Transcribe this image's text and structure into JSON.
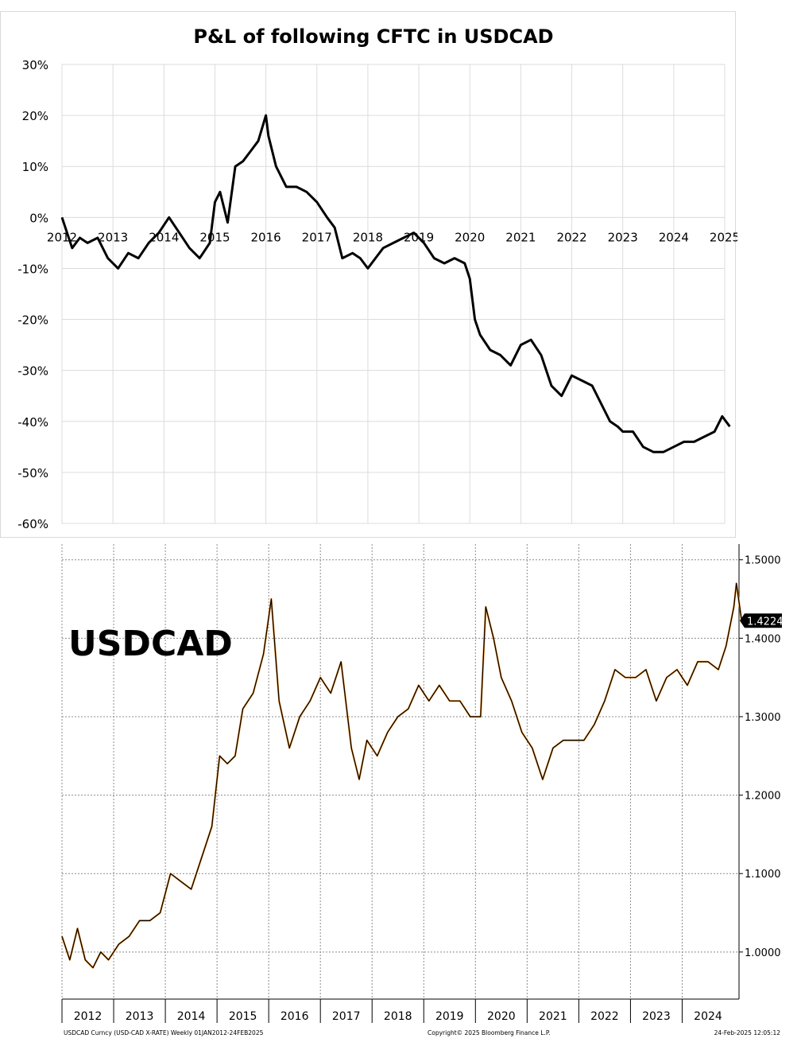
{
  "chart_data": [
    {
      "type": "line",
      "title": "P&L of following CFTC in USDCAD",
      "xlabel": "",
      "ylabel": "",
      "ylim": [
        -60,
        30
      ],
      "xlim": [
        2012,
        2025
      ],
      "y_ticks": [
        "30%",
        "20%",
        "10%",
        "0%",
        "-10%",
        "-20%",
        "-30%",
        "-40%",
        "-50%",
        "-60%"
      ],
      "x_ticks": [
        "2012",
        "2013",
        "2014",
        "2015",
        "2016",
        "2017",
        "2018",
        "2019",
        "2020",
        "2021",
        "2022",
        "2023",
        "2024",
        "2025"
      ],
      "grid": true,
      "line_color": "#000000",
      "series": [
        {
          "x": [
            2012.0,
            2012.1,
            2012.2,
            2012.35,
            2012.5,
            2012.7,
            2012.9,
            2013.1,
            2013.3,
            2013.5,
            2013.7,
            2013.9,
            2014.1,
            2014.3,
            2014.5,
            2014.7,
            2014.9,
            2015.0,
            2015.1,
            2015.25,
            2015.4,
            2015.55,
            2015.7,
            2015.85,
            2016.0,
            2016.05,
            2016.2,
            2016.4,
            2016.6,
            2016.8,
            2017.0,
            2017.2,
            2017.35,
            2017.5,
            2017.7,
            2017.85,
            2018.0,
            2018.15,
            2018.3,
            2018.5,
            2018.7,
            2018.9,
            2019.1,
            2019.3,
            2019.5,
            2019.7,
            2019.9,
            2020.0,
            2020.1,
            2020.2,
            2020.4,
            2020.6,
            2020.8,
            2021.0,
            2021.2,
            2021.4,
            2021.6,
            2021.8,
            2022.0,
            2022.2,
            2022.4,
            2022.6,
            2022.75,
            2022.9,
            2023.0,
            2023.2,
            2023.4,
            2023.6,
            2023.8,
            2024.0,
            2024.2,
            2024.4,
            2024.6,
            2024.8,
            2024.95,
            2025.1
          ],
          "y": [
            0,
            -3,
            -6,
            -4,
            -5,
            -4,
            -8,
            -10,
            -7,
            -8,
            -5,
            -3,
            0,
            -3,
            -6,
            -8,
            -5,
            3,
            5,
            -1,
            10,
            11,
            13,
            15,
            20,
            16,
            10,
            6,
            6,
            5,
            3,
            0,
            -2,
            -8,
            -7,
            -8,
            -10,
            -8,
            -6,
            -5,
            -4,
            -3,
            -5,
            -8,
            -9,
            -8,
            -9,
            -12,
            -20,
            -23,
            -26,
            -27,
            -29,
            -25,
            -24,
            -27,
            -33,
            -35,
            -31,
            -32,
            -33,
            -37,
            -40,
            -41,
            -42,
            -42,
            -45,
            -46,
            -46,
            -45,
            -44,
            -44,
            -43,
            -42,
            -39,
            -41
          ]
        }
      ]
    },
    {
      "type": "line",
      "title": "USDCAD",
      "xlabel": "",
      "ylabel": "",
      "ylim": [
        0.94,
        1.52
      ],
      "xlim": [
        2012,
        2025.1
      ],
      "y_ticks": [
        "1.5000",
        "1.4000",
        "1.3000",
        "1.2000",
        "1.1000",
        "1.0000"
      ],
      "x_ticks": [
        "2012",
        "2013",
        "2014",
        "2015",
        "2016",
        "2017",
        "2018",
        "2019",
        "2020",
        "2021",
        "2022",
        "2023",
        "2024"
      ],
      "last_value_label": "1.4224",
      "last_value": 1.4224,
      "grid": true,
      "line_color": "#000000",
      "accent_color": "#f28c1c",
      "series": [
        {
          "x": [
            2012.0,
            2012.15,
            2012.3,
            2012.45,
            2012.6,
            2012.75,
            2012.9,
            2013.1,
            2013.3,
            2013.5,
            2013.7,
            2013.9,
            2014.1,
            2014.3,
            2014.5,
            2014.7,
            2014.9,
            2015.05,
            2015.2,
            2015.35,
            2015.5,
            2015.7,
            2015.9,
            2016.05,
            2016.2,
            2016.4,
            2016.6,
            2016.8,
            2017.0,
            2017.2,
            2017.4,
            2017.6,
            2017.75,
            2017.9,
            2018.1,
            2018.3,
            2018.5,
            2018.7,
            2018.9,
            2019.1,
            2019.3,
            2019.5,
            2019.7,
            2019.9,
            2020.1,
            2020.2,
            2020.35,
            2020.5,
            2020.7,
            2020.9,
            2021.1,
            2021.3,
            2021.5,
            2021.7,
            2021.9,
            2022.1,
            2022.3,
            2022.5,
            2022.7,
            2022.9,
            2023.1,
            2023.3,
            2023.5,
            2023.7,
            2023.9,
            2024.1,
            2024.3,
            2024.5,
            2024.7,
            2024.85,
            2025.0,
            2025.05,
            2025.15
          ],
          "y": [
            1.02,
            0.99,
            1.03,
            0.99,
            0.98,
            1.0,
            0.99,
            1.01,
            1.02,
            1.04,
            1.04,
            1.05,
            1.1,
            1.09,
            1.08,
            1.12,
            1.16,
            1.25,
            1.24,
            1.25,
            1.31,
            1.33,
            1.38,
            1.45,
            1.32,
            1.26,
            1.3,
            1.32,
            1.35,
            1.33,
            1.37,
            1.26,
            1.22,
            1.27,
            1.25,
            1.28,
            1.3,
            1.31,
            1.34,
            1.32,
            1.34,
            1.32,
            1.32,
            1.3,
            1.3,
            1.44,
            1.4,
            1.35,
            1.32,
            1.28,
            1.26,
            1.22,
            1.26,
            1.27,
            1.27,
            1.27,
            1.29,
            1.32,
            1.36,
            1.35,
            1.35,
            1.36,
            1.32,
            1.35,
            1.36,
            1.34,
            1.37,
            1.37,
            1.36,
            1.39,
            1.44,
            1.47,
            1.4224
          ]
        }
      ],
      "footer_left": "USDCAD Curncy (USD-CAD X-RATE)  Weekly 01JAN2012-24FEB2025",
      "footer_center": "Copyright© 2025 Bloomberg Finance L.P.",
      "footer_right": "24-Feb-2025 12:05:12"
    }
  ]
}
